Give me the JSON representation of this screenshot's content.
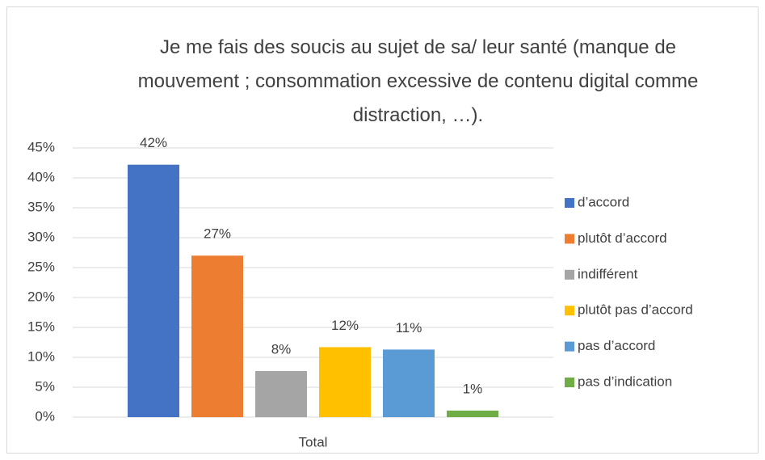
{
  "chart_data": {
    "type": "bar",
    "title": "Je me fais des soucis au sujet de sa/ leur santé (manque de mouvement ; consommation excessive de contenu digital comme distraction, …).",
    "categories": [
      "Total"
    ],
    "series": [
      {
        "name": "d’accord",
        "color": "#4472c4",
        "values": [
          42.2
        ],
        "value_labels": [
          "42%"
        ]
      },
      {
        "name": "plutôt d’accord",
        "color": "#ed7d31",
        "values": [
          27
        ],
        "value_labels": [
          "27%"
        ]
      },
      {
        "name": "indifférent",
        "color": "#a5a5a5",
        "values": [
          7.7
        ],
        "value_labels": [
          "8%"
        ]
      },
      {
        "name": "plutôt pas d’accord",
        "color": "#ffc000",
        "values": [
          11.7
        ],
        "value_labels": [
          "12%"
        ]
      },
      {
        "name": "pas d’accord",
        "color": "#5b9bd5",
        "values": [
          11.3
        ],
        "value_labels": [
          "11%"
        ]
      },
      {
        "name": "pas d’indication",
        "color": "#70ad47",
        "values": [
          1.1
        ],
        "value_labels": [
          "1%"
        ]
      }
    ],
    "ylim": [
      0,
      45
    ],
    "yticks": [
      {
        "value": 0,
        "label": "0%"
      },
      {
        "value": 5,
        "label": "5%"
      },
      {
        "value": 10,
        "label": "10%"
      },
      {
        "value": 15,
        "label": "15%"
      },
      {
        "value": 20,
        "label": "20%"
      },
      {
        "value": 25,
        "label": "25%"
      },
      {
        "value": 30,
        "label": "30%"
      },
      {
        "value": 35,
        "label": "35%"
      },
      {
        "value": 40,
        "label": "40%"
      },
      {
        "value": 45,
        "label": "45%"
      }
    ],
    "grid": true,
    "legend": "right"
  }
}
